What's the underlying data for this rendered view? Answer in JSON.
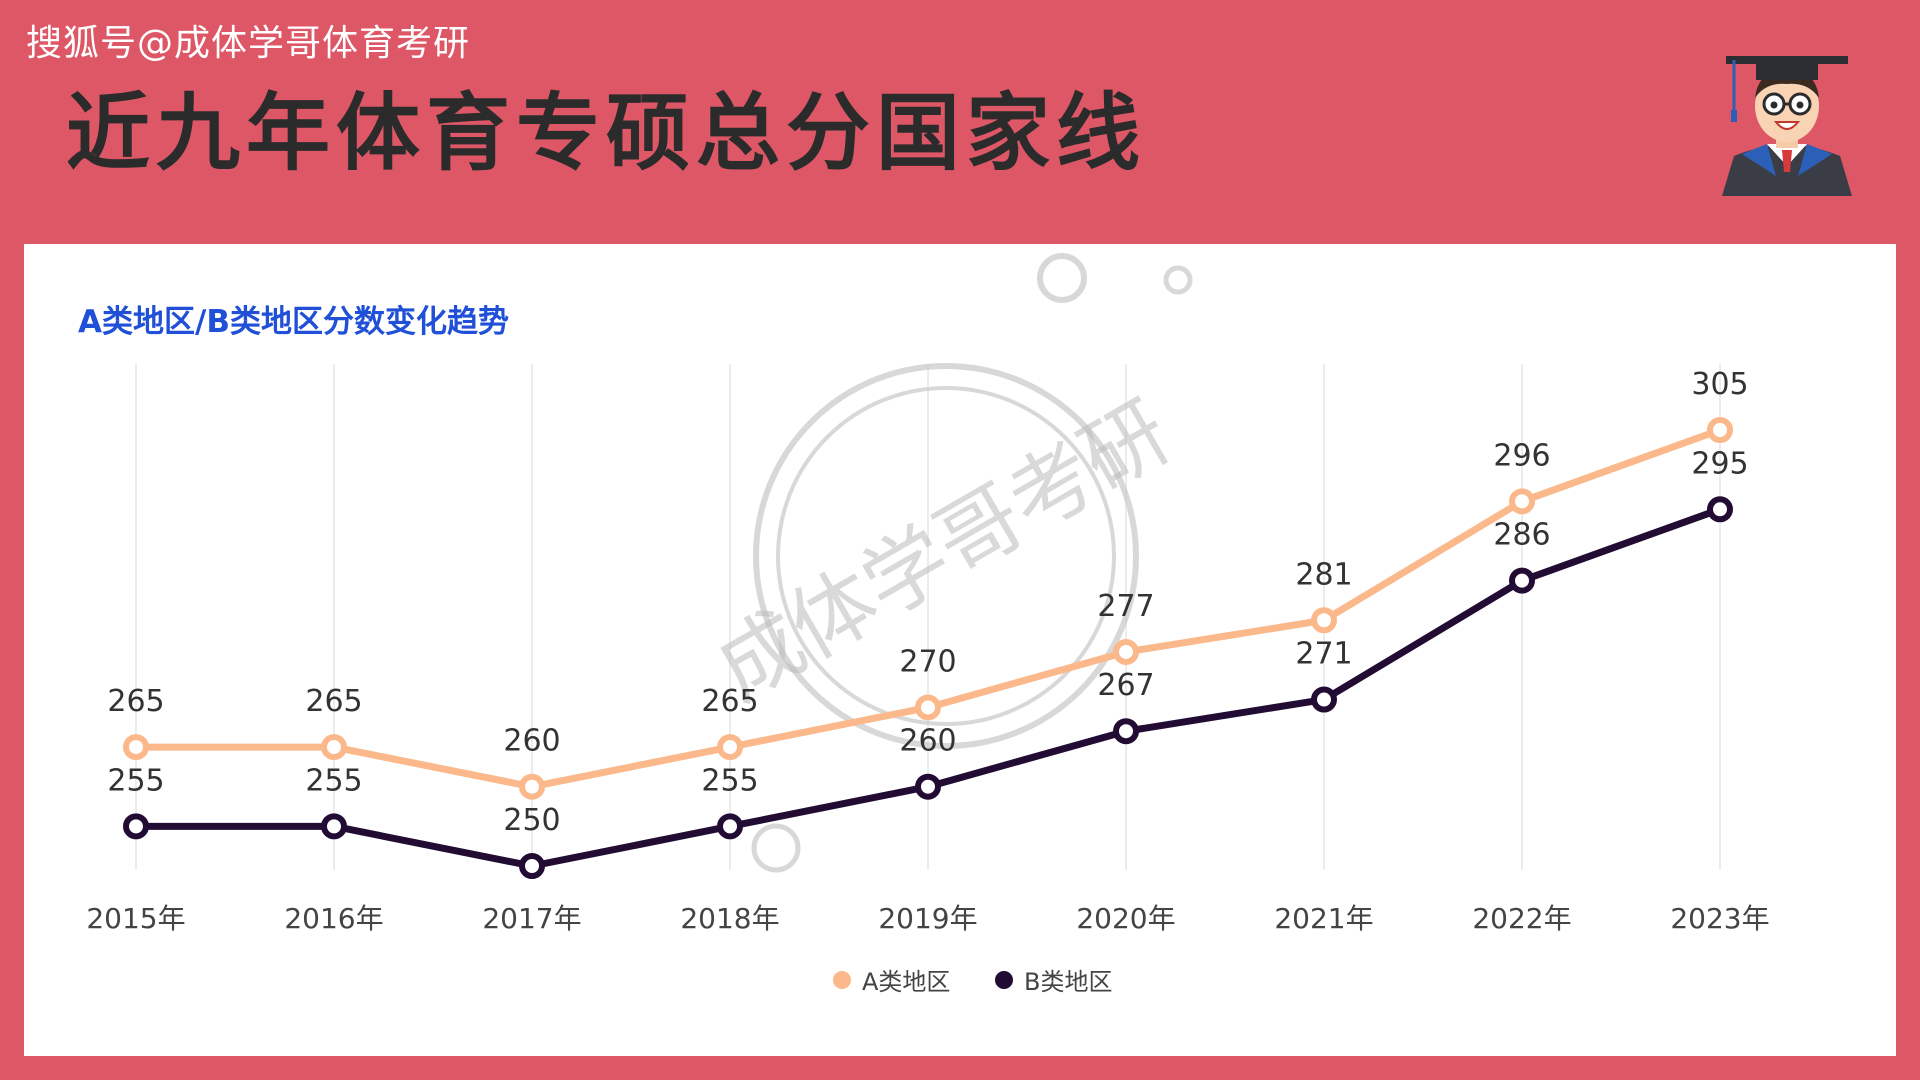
{
  "header": {
    "source": "搜狐号@成体学哥体育考研",
    "title": "近九年体育专硕总分国家线"
  },
  "watermark": {
    "text": "成体学哥考研"
  },
  "mascot": {
    "icon": "graduate-cartoon-icon"
  },
  "colors": {
    "background": "#de5766",
    "seriesA": "#fbb88a",
    "seriesB": "#220c33",
    "subtitle": "#2050d8"
  },
  "chart_data": {
    "type": "line",
    "title": "A类地区/B类地区分数变化趋势",
    "xlabel": "",
    "ylabel": "",
    "categories": [
      "2015年",
      "2016年",
      "2017年",
      "2018年",
      "2019年",
      "2020年",
      "2021年",
      "2022年",
      "2023年"
    ],
    "series": [
      {
        "name": "A类地区",
        "values": [
          265,
          265,
          260,
          265,
          270,
          277,
          281,
          296,
          305
        ],
        "color": "#fbb88a"
      },
      {
        "name": "B类地区",
        "values": [
          255,
          255,
          250,
          255,
          260,
          267,
          271,
          286,
          295
        ],
        "color": "#220c33"
      }
    ],
    "ylim": [
      250,
      305
    ],
    "grid": "vertical",
    "legend": "bottom-center"
  }
}
